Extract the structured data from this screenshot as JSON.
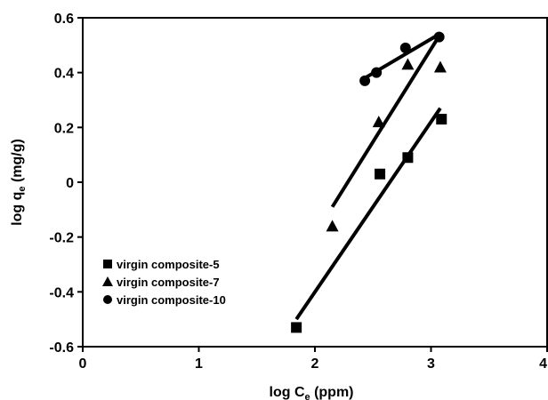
{
  "chart_data": {
    "type": "scatter",
    "xlabel": "log C",
    "xlabel_sub": "e",
    "xlabel_suffix": " (ppm)",
    "ylabel": "log q",
    "ylabel_sub": "e",
    "ylabel_suffix": " (mg/g)",
    "xlim": [
      0,
      4
    ],
    "ylim": [
      -0.6,
      0.6
    ],
    "x_ticks": [
      0,
      1,
      2,
      3,
      4
    ],
    "x_tick_labels": [
      "0",
      "1",
      "2",
      "3",
      "4"
    ],
    "y_ticks": [
      -0.6,
      -0.4,
      -0.2,
      0,
      0.2,
      0.4,
      0.6
    ],
    "y_tick_labels": [
      "-0.6",
      "-0.4",
      "-0.2",
      "0",
      "0.2",
      "0.4",
      "0.6"
    ],
    "grid": false,
    "legend_position": "lower-left",
    "series": [
      {
        "name": "virgin composite-5",
        "marker": "square",
        "color": "#000000",
        "points": [
          [
            1.84,
            -0.53
          ],
          [
            2.56,
            0.03
          ],
          [
            2.8,
            0.09
          ],
          [
            3.09,
            0.23
          ]
        ],
        "trendline": [
          [
            1.84,
            -0.5
          ],
          [
            3.08,
            0.27
          ]
        ]
      },
      {
        "name": "virgin composite-7",
        "marker": "triangle",
        "color": "#000000",
        "points": [
          [
            2.15,
            -0.16
          ],
          [
            2.55,
            0.22
          ],
          [
            2.8,
            0.43
          ],
          [
            3.08,
            0.42
          ]
        ],
        "trendline": [
          [
            2.15,
            -0.09
          ],
          [
            3.05,
            0.52
          ]
        ]
      },
      {
        "name": "virgin composite-10",
        "marker": "circle",
        "color": "#000000",
        "points": [
          [
            2.43,
            0.37
          ],
          [
            2.53,
            0.4
          ],
          [
            2.78,
            0.49
          ],
          [
            3.07,
            0.53
          ]
        ],
        "trendline": [
          [
            2.43,
            0.38
          ],
          [
            3.07,
            0.54
          ]
        ]
      }
    ]
  }
}
